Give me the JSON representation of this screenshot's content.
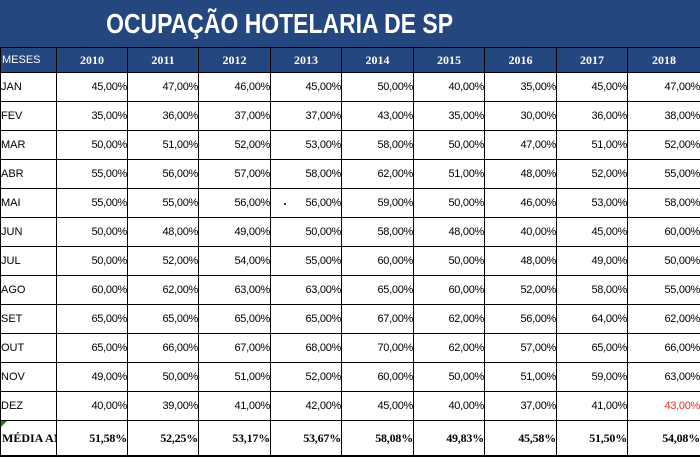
{
  "title": "OCUPAÇÃO HOTELARIA DE SP",
  "header_label": "MESES",
  "years": [
    "2010",
    "2011",
    "2012",
    "2013",
    "2014",
    "2015",
    "2016",
    "2017",
    "2018"
  ],
  "rows": [
    {
      "month": "JAN",
      "values": [
        "45,00%",
        "47,00%",
        "46,00%",
        "45,00%",
        "50,00%",
        "40,00%",
        "35,00%",
        "45,00%",
        "47,00%"
      ]
    },
    {
      "month": "FEV",
      "values": [
        "35,00%",
        "36,00%",
        "37,00%",
        "37,00%",
        "43,00%",
        "35,00%",
        "30,00%",
        "36,00%",
        "38,00%"
      ]
    },
    {
      "month": "MAR",
      "values": [
        "50,00%",
        "51,00%",
        "52,00%",
        "53,00%",
        "58,00%",
        "50,00%",
        "47,00%",
        "51,00%",
        "52,00%"
      ]
    },
    {
      "month": "ABR",
      "values": [
        "55,00%",
        "56,00%",
        "57,00%",
        "58,00%",
        "62,00%",
        "51,00%",
        "48,00%",
        "52,00%",
        "55,00%"
      ]
    },
    {
      "month": "MAI",
      "values": [
        "55,00%",
        "55,00%",
        "56,00%",
        "56,00%",
        "59,00%",
        "50,00%",
        "46,00%",
        "53,00%",
        "58,00%"
      ]
    },
    {
      "month": "JUN",
      "values": [
        "50,00%",
        "48,00%",
        "49,00%",
        "50,00%",
        "58,00%",
        "48,00%",
        "40,00%",
        "45,00%",
        "60,00%"
      ]
    },
    {
      "month": "JUL",
      "values": [
        "50,00%",
        "52,00%",
        "54,00%",
        "55,00%",
        "60,00%",
        "50,00%",
        "48,00%",
        "49,00%",
        "50,00%"
      ]
    },
    {
      "month": "AGO",
      "values": [
        "60,00%",
        "62,00%",
        "63,00%",
        "63,00%",
        "65,00%",
        "60,00%",
        "52,00%",
        "58,00%",
        "55,00%"
      ]
    },
    {
      "month": "SET",
      "values": [
        "65,00%",
        "65,00%",
        "65,00%",
        "65,00%",
        "67,00%",
        "62,00%",
        "56,00%",
        "64,00%",
        "62,00%"
      ]
    },
    {
      "month": "OUT",
      "values": [
        "65,00%",
        "66,00%",
        "67,00%",
        "68,00%",
        "70,00%",
        "62,00%",
        "57,00%",
        "65,00%",
        "66,00%"
      ]
    },
    {
      "month": "NOV",
      "values": [
        "49,00%",
        "50,00%",
        "51,00%",
        "52,00%",
        "60,00%",
        "50,00%",
        "51,00%",
        "59,00%",
        "63,00%"
      ]
    },
    {
      "month": "DEZ",
      "values": [
        "40,00%",
        "39,00%",
        "41,00%",
        "42,00%",
        "45,00%",
        "40,00%",
        "37,00%",
        "41,00%",
        "43,00%"
      ]
    }
  ],
  "average": {
    "label": "MÉDIA ANO",
    "values": [
      "51,58%",
      "52,25%",
      "53,17%",
      "53,67%",
      "58,08%",
      "49,83%",
      "45,58%",
      "51,50%",
      "54,08%"
    ]
  },
  "highlight_color": "#e0322b",
  "header_color": "#25477f"
}
